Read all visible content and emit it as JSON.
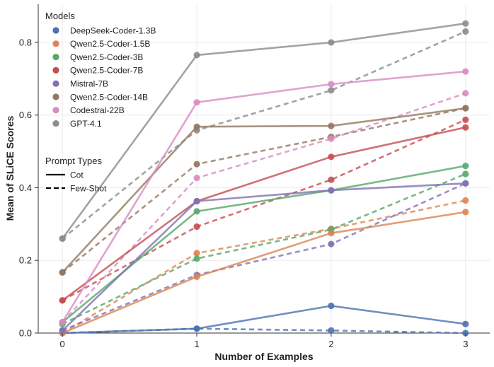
{
  "chart_data": {
    "type": "line",
    "title": "",
    "xlabel": "Number of Examples",
    "ylabel": "Mean of SLiCE Scores",
    "x": [
      0,
      1,
      2,
      3
    ],
    "x_tick_labels": [
      "0",
      "1",
      "2",
      "3"
    ],
    "y_tick_labels": [
      "0.0",
      "0.2",
      "0.4",
      "0.6",
      "0.8"
    ],
    "y_ticks": [
      0.0,
      0.2,
      0.4,
      0.6,
      0.8
    ],
    "xlim": [
      -0.18,
      3.18
    ],
    "ylim": [
      0.0,
      0.905
    ],
    "grid": true,
    "legend_models_title": "Models",
    "legend_prompt_title": "Prompt Types",
    "legend_placement": "top-left",
    "prompt_types": [
      {
        "name": "Cot",
        "dash": "solid"
      },
      {
        "name": "Few-Shot",
        "dash": "dashed"
      }
    ],
    "series": [
      {
        "name": "DeepSeek-Coder-1.3B",
        "color": "#4c72b0",
        "cot": [
          0.0,
          0.012,
          0.075,
          0.025
        ],
        "few_shot": [
          0.0,
          0.012,
          0.007,
          0.0
        ]
      },
      {
        "name": "Qwen2.5-Coder-1.5B",
        "color": "#dd8452",
        "cot": [
          0.0,
          0.155,
          0.275,
          0.333
        ],
        "few_shot": [
          0.0,
          0.22,
          0.287,
          0.365
        ]
      },
      {
        "name": "Qwen2.5-Coder-3B",
        "color": "#55a868",
        "cot": [
          0.03,
          0.335,
          0.393,
          0.46
        ],
        "few_shot": [
          0.025,
          0.205,
          0.285,
          0.438
        ]
      },
      {
        "name": "Qwen2.5-Coder-7B",
        "color": "#c44e52",
        "cot": [
          0.09,
          0.363,
          0.485,
          0.566
        ],
        "few_shot": [
          0.09,
          0.293,
          0.422,
          0.587
        ]
      },
      {
        "name": "Mistral-7B",
        "color": "#8172b3",
        "cot": [
          0.007,
          0.363,
          0.393,
          0.412
        ],
        "few_shot": [
          0.007,
          0.16,
          0.245,
          0.412
        ]
      },
      {
        "name": "Qwen2.5-Coder-14B",
        "color": "#937860",
        "cot": [
          0.167,
          0.568,
          0.57,
          0.619
        ],
        "few_shot": [
          0.167,
          0.465,
          0.54,
          0.619
        ]
      },
      {
        "name": "Codestral-22B",
        "color": "#da8bc3",
        "cot": [
          0.03,
          0.635,
          0.685,
          0.72
        ],
        "few_shot": [
          0.03,
          0.427,
          0.535,
          0.66
        ]
      },
      {
        "name": "GPT-4.1",
        "color": "#8c8c8c",
        "cot": [
          0.26,
          0.765,
          0.8,
          0.852
        ],
        "few_shot": [
          0.26,
          0.558,
          0.668,
          0.83
        ]
      }
    ]
  }
}
